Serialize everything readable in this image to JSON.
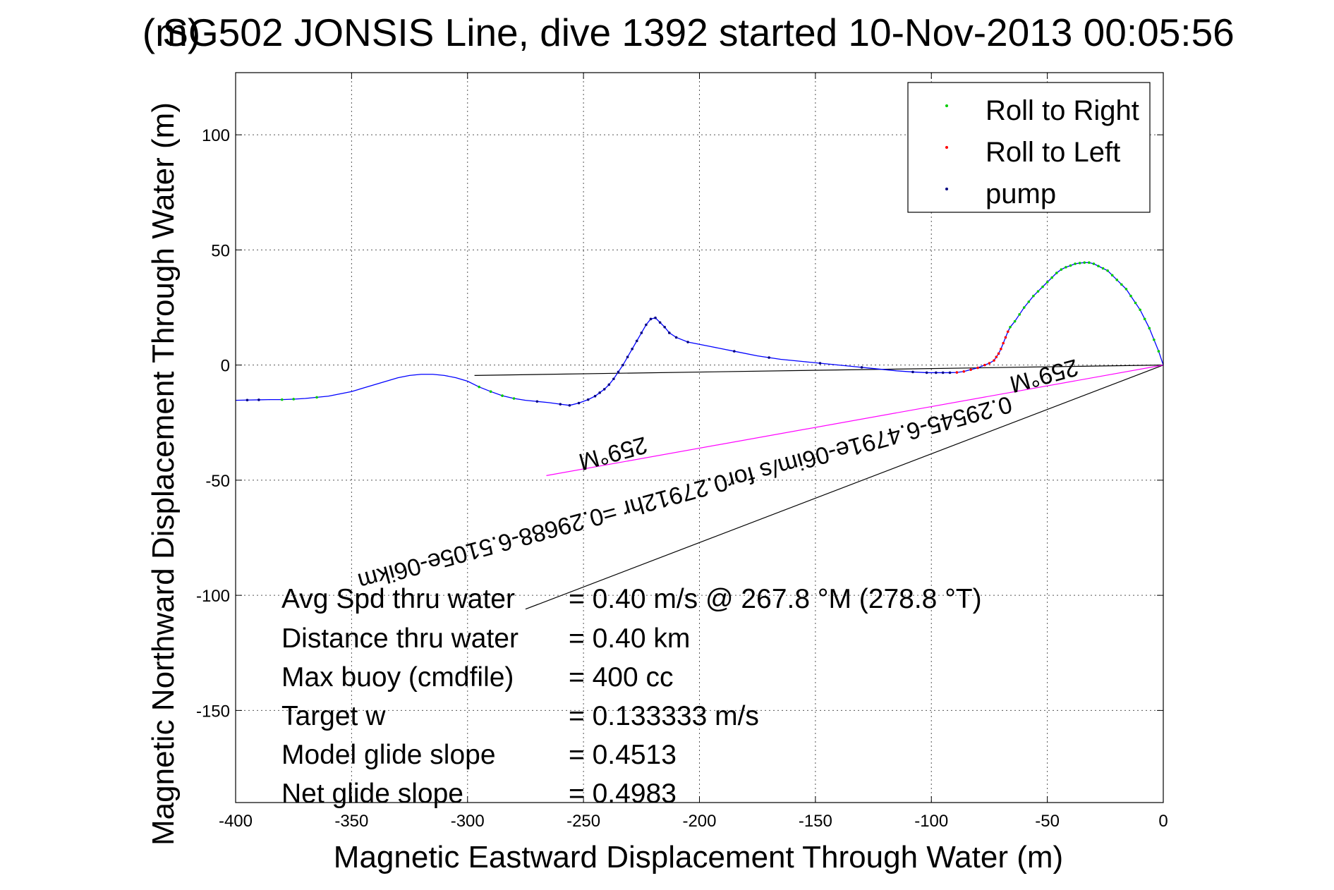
{
  "chart_data": {
    "type": "line",
    "title": "SG502 JONSIS Line, dive 1392 started 10-Nov-2013 00:05:56",
    "title_overlay": "(m)",
    "xlabel": "Magnetic Eastward Displacement Through Water (m)",
    "ylabel": "Magnetic Northward Displacement Through Water (m)",
    "xlim": [
      -400,
      0
    ],
    "ylim": [
      -190,
      127
    ],
    "xticks": [
      -400,
      -350,
      -300,
      -250,
      -200,
      -150,
      -100,
      -50,
      0
    ],
    "yticks": [
      -150,
      -100,
      -50,
      0,
      50,
      100
    ],
    "grid": true,
    "legend_position": "top-right",
    "legend": [
      {
        "label": "Roll to Right",
        "color": "#00cc00"
      },
      {
        "label": "Roll to Left",
        "color": "#ff0000"
      },
      {
        "label": "pump",
        "color": "#000080"
      }
    ],
    "track": {
      "color": "#0000ff",
      "x": [
        0,
        -2,
        -4,
        -6,
        -8,
        -10,
        -12,
        -14,
        -16,
        -18,
        -20,
        -22,
        -24,
        -26,
        -28,
        -30,
        -32,
        -34,
        -36,
        -38,
        -40,
        -42,
        -44,
        -46,
        -48,
        -50,
        -52,
        -54,
        -56,
        -58,
        -60,
        -62,
        -64,
        -66,
        -67,
        -68,
        -69,
        -70,
        -71,
        -72,
        -73,
        -75,
        -77,
        -80,
        -83,
        -86,
        -89,
        -92,
        -95,
        -98,
        -102,
        -108,
        -115,
        -125,
        -135,
        -145,
        -155,
        -165,
        -175,
        -185,
        -195,
        -205,
        -210,
        -213,
        -215,
        -217,
        -219,
        -221,
        -223,
        -225,
        -227,
        -229,
        -231,
        -233,
        -235,
        -237,
        -239,
        -241,
        -243,
        -245,
        -248,
        -252,
        -256,
        -260,
        -265,
        -270,
        -275,
        -280,
        -285,
        -290,
        -295,
        -300,
        -305,
        -310,
        -315,
        -320,
        -325,
        -330,
        -335,
        -340,
        -345,
        -350,
        -355,
        -360,
        -365,
        -370,
        -375,
        -380,
        -385,
        -390,
        -395,
        -400
      ],
      "y": [
        0,
        6,
        11,
        16,
        20,
        24,
        27,
        30,
        33,
        35,
        37,
        39,
        41,
        42,
        43,
        44,
        44.5,
        44.5,
        44.3,
        44,
        43.2,
        42.5,
        41.5,
        40,
        38,
        36,
        34,
        32,
        30,
        27.5,
        25,
        22,
        19,
        16.5,
        14.5,
        12,
        9.5,
        7,
        5,
        3.5,
        2,
        0.8,
        0,
        -1.2,
        -2,
        -2.8,
        -3.2,
        -3.3,
        -3.3,
        -3.3,
        -3.3,
        -3,
        -2.5,
        -1.5,
        -0.5,
        0.5,
        1.5,
        2.5,
        4,
        6,
        8,
        10,
        12,
        14,
        16.5,
        18.5,
        20.5,
        20,
        17.5,
        14,
        10.5,
        7,
        3.5,
        0,
        -3,
        -6,
        -8.5,
        -10.5,
        -12,
        -13.5,
        -15,
        -16.5,
        -17.5,
        -17,
        -16.3,
        -15.8,
        -15.3,
        -14.5,
        -13.3,
        -11.5,
        -9.5,
        -7,
        -5.5,
        -4.5,
        -4,
        -4,
        -4.5,
        -5.5,
        -7,
        -8.5,
        -10,
        -11.5,
        -12.5,
        -13.5,
        -14,
        -14.5,
        -14.8,
        -15,
        -15,
        -15.1,
        -15.2,
        -15.3
      ],
      "roll_right_x": [
        -2,
        -4,
        -6,
        -8,
        -10,
        -12,
        -14,
        -16,
        -18,
        -20,
        -22,
        -24,
        -26,
        -28,
        -30,
        -32,
        -34,
        -36,
        -38,
        -40,
        -42,
        -44,
        -46,
        -48,
        -50,
        -52,
        -54,
        -56,
        -58,
        -60,
        -62,
        -64,
        -66,
        -280,
        -285,
        -290,
        -295,
        -365,
        -375,
        -380
      ],
      "roll_left_x": [
        -67,
        -68,
        -69,
        -70,
        -71,
        -72,
        -73,
        -75,
        -77,
        -80,
        -83,
        -86,
        -89
      ],
      "pump_x": [
        -92,
        -95,
        -98,
        -102,
        -108,
        -130,
        -148,
        -170,
        -185,
        -205,
        -210,
        -213,
        -215,
        -217,
        -219,
        -221,
        -223,
        -225,
        -227,
        -229,
        -231,
        -233,
        -235,
        -237,
        -239,
        -241,
        -243,
        -245,
        -248,
        -252,
        -256,
        -260,
        -270,
        -390,
        -395
      ]
    },
    "reference_lines": [
      {
        "color": "#000000",
        "x": [
          0,
          -297
        ],
        "y": [
          0,
          -4.5
        ]
      },
      {
        "color": "#000000",
        "x": [
          0,
          -275
        ],
        "y": [
          0,
          -106
        ]
      },
      {
        "color": "#ff00ff",
        "x": [
          0,
          -266
        ],
        "y": [
          0,
          -48
        ]
      }
    ],
    "rotated_annotations": [
      {
        "text": "0.29545-6.4791e-06im/s for0.27912hr =0.29688-6.5105e-06ikm"
      },
      {
        "text": "259°M"
      },
      {
        "text": "259°M"
      }
    ],
    "stats": [
      {
        "label": "Avg Spd thru water",
        "value": "=  0.40 m/s @ 267.8 °M (278.8 °T)"
      },
      {
        "label": "Distance thru water",
        "value": "=  0.40 km"
      },
      {
        "label": "Max buoy (cmdfile)",
        "value": "= 400 cc"
      },
      {
        "label": "Target w",
        "value": "= 0.133333 m/s"
      },
      {
        "label": "Model glide slope",
        "value": "= 0.4513"
      },
      {
        "label": "Net glide slope",
        "value": "= 0.4983"
      }
    ]
  }
}
